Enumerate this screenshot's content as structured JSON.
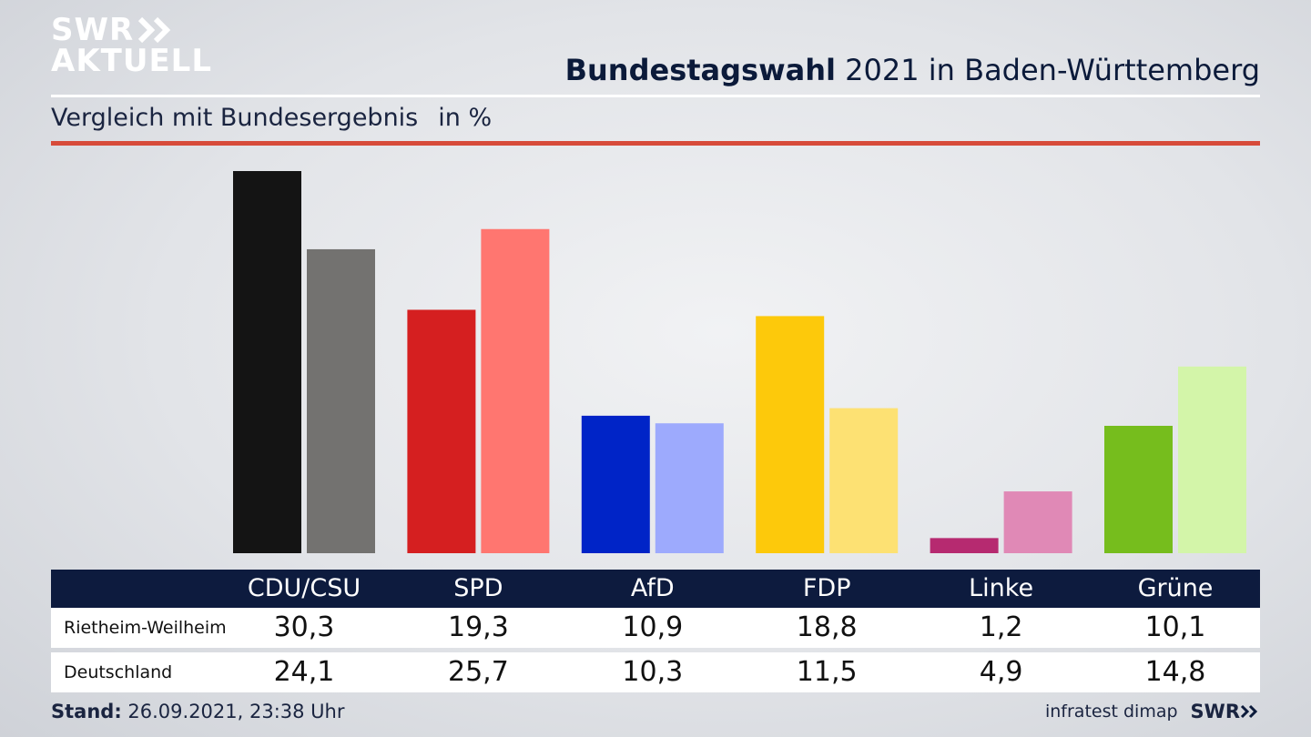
{
  "logo": {
    "line1": "SWR",
    "line2": "AKTUELL"
  },
  "header": {
    "title_bold": "Bundestagswahl",
    "title_rest": " 2021 in Baden-Württemberg",
    "subtitle": "Vergleich mit Bundesergebnis",
    "unit": "in %"
  },
  "chart_data": {
    "type": "bar",
    "categories": [
      "CDU/CSU",
      "SPD",
      "AfD",
      "FDP",
      "Linke",
      "Grüne"
    ],
    "series": [
      {
        "name": "Rietheim-Weilheim",
        "values": [
          30.3,
          19.3,
          10.9,
          18.8,
          1.2,
          10.1
        ]
      },
      {
        "name": "Deutschland",
        "values": [
          24.1,
          25.7,
          10.3,
          11.5,
          4.9,
          14.8
        ]
      }
    ],
    "colors": {
      "local": [
        "#141414",
        "#d51f20",
        "#0024c7",
        "#fdc90b",
        "#b62a70",
        "#76bd1d"
      ],
      "national": [
        "#737270",
        "#ff7670",
        "#9daafd",
        "#fde173",
        "#e089b6",
        "#d3f5a9"
      ]
    },
    "ylim": [
      0,
      30.3
    ],
    "grid": false,
    "legend": "none"
  },
  "table": {
    "rows": [
      {
        "label": "Rietheim-Weilheim",
        "values": [
          "30,3",
          "19,3",
          "10,9",
          "18,8",
          "1,2",
          "10,1"
        ]
      },
      {
        "label": "Deutschland",
        "values": [
          "24,1",
          "25,7",
          "10,3",
          "11,5",
          "4,9",
          "14,8"
        ]
      }
    ]
  },
  "footer": {
    "stand_label": "Stand:",
    "stand_value": " 26.09.2021, 23:38 Uhr",
    "source": "infratest dimap",
    "brand": "SWR"
  }
}
